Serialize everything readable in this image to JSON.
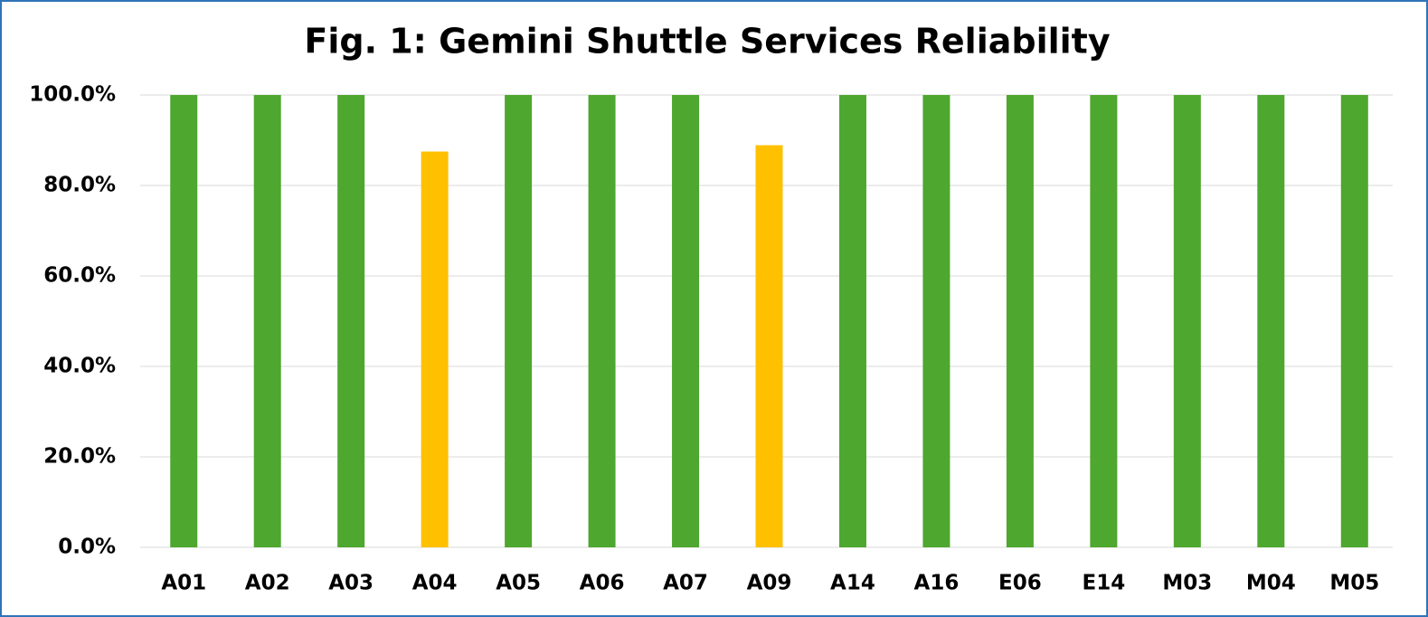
{
  "chart_data": {
    "type": "bar",
    "title": "Fig. 1: Gemini Shuttle Services Reliability",
    "categories": [
      "A01",
      "A02",
      "A03",
      "A04",
      "A05",
      "A06",
      "A07",
      "A09",
      "A14",
      "A16",
      "E06",
      "E14",
      "M03",
      "M04",
      "M05"
    ],
    "values": [
      100,
      100,
      100,
      87.5,
      100,
      100,
      100,
      88.9,
      100,
      100,
      100,
      100,
      100,
      100,
      100
    ],
    "colors": [
      "#4ea72e",
      "#4ea72e",
      "#4ea72e",
      "#ffc000",
      "#4ea72e",
      "#4ea72e",
      "#4ea72e",
      "#ffc000",
      "#4ea72e",
      "#4ea72e",
      "#4ea72e",
      "#4ea72e",
      "#4ea72e",
      "#4ea72e",
      "#4ea72e"
    ],
    "ylim": [
      0,
      100
    ],
    "yticks": [
      {
        "value": 0,
        "label": "0.0%"
      },
      {
        "value": 20,
        "label": "20.0%"
      },
      {
        "value": 40,
        "label": "40.0%"
      },
      {
        "value": 60,
        "label": "60.0%"
      },
      {
        "value": 80,
        "label": "80.0%"
      },
      {
        "value": 100,
        "label": "100.0%"
      }
    ],
    "grid": true
  }
}
